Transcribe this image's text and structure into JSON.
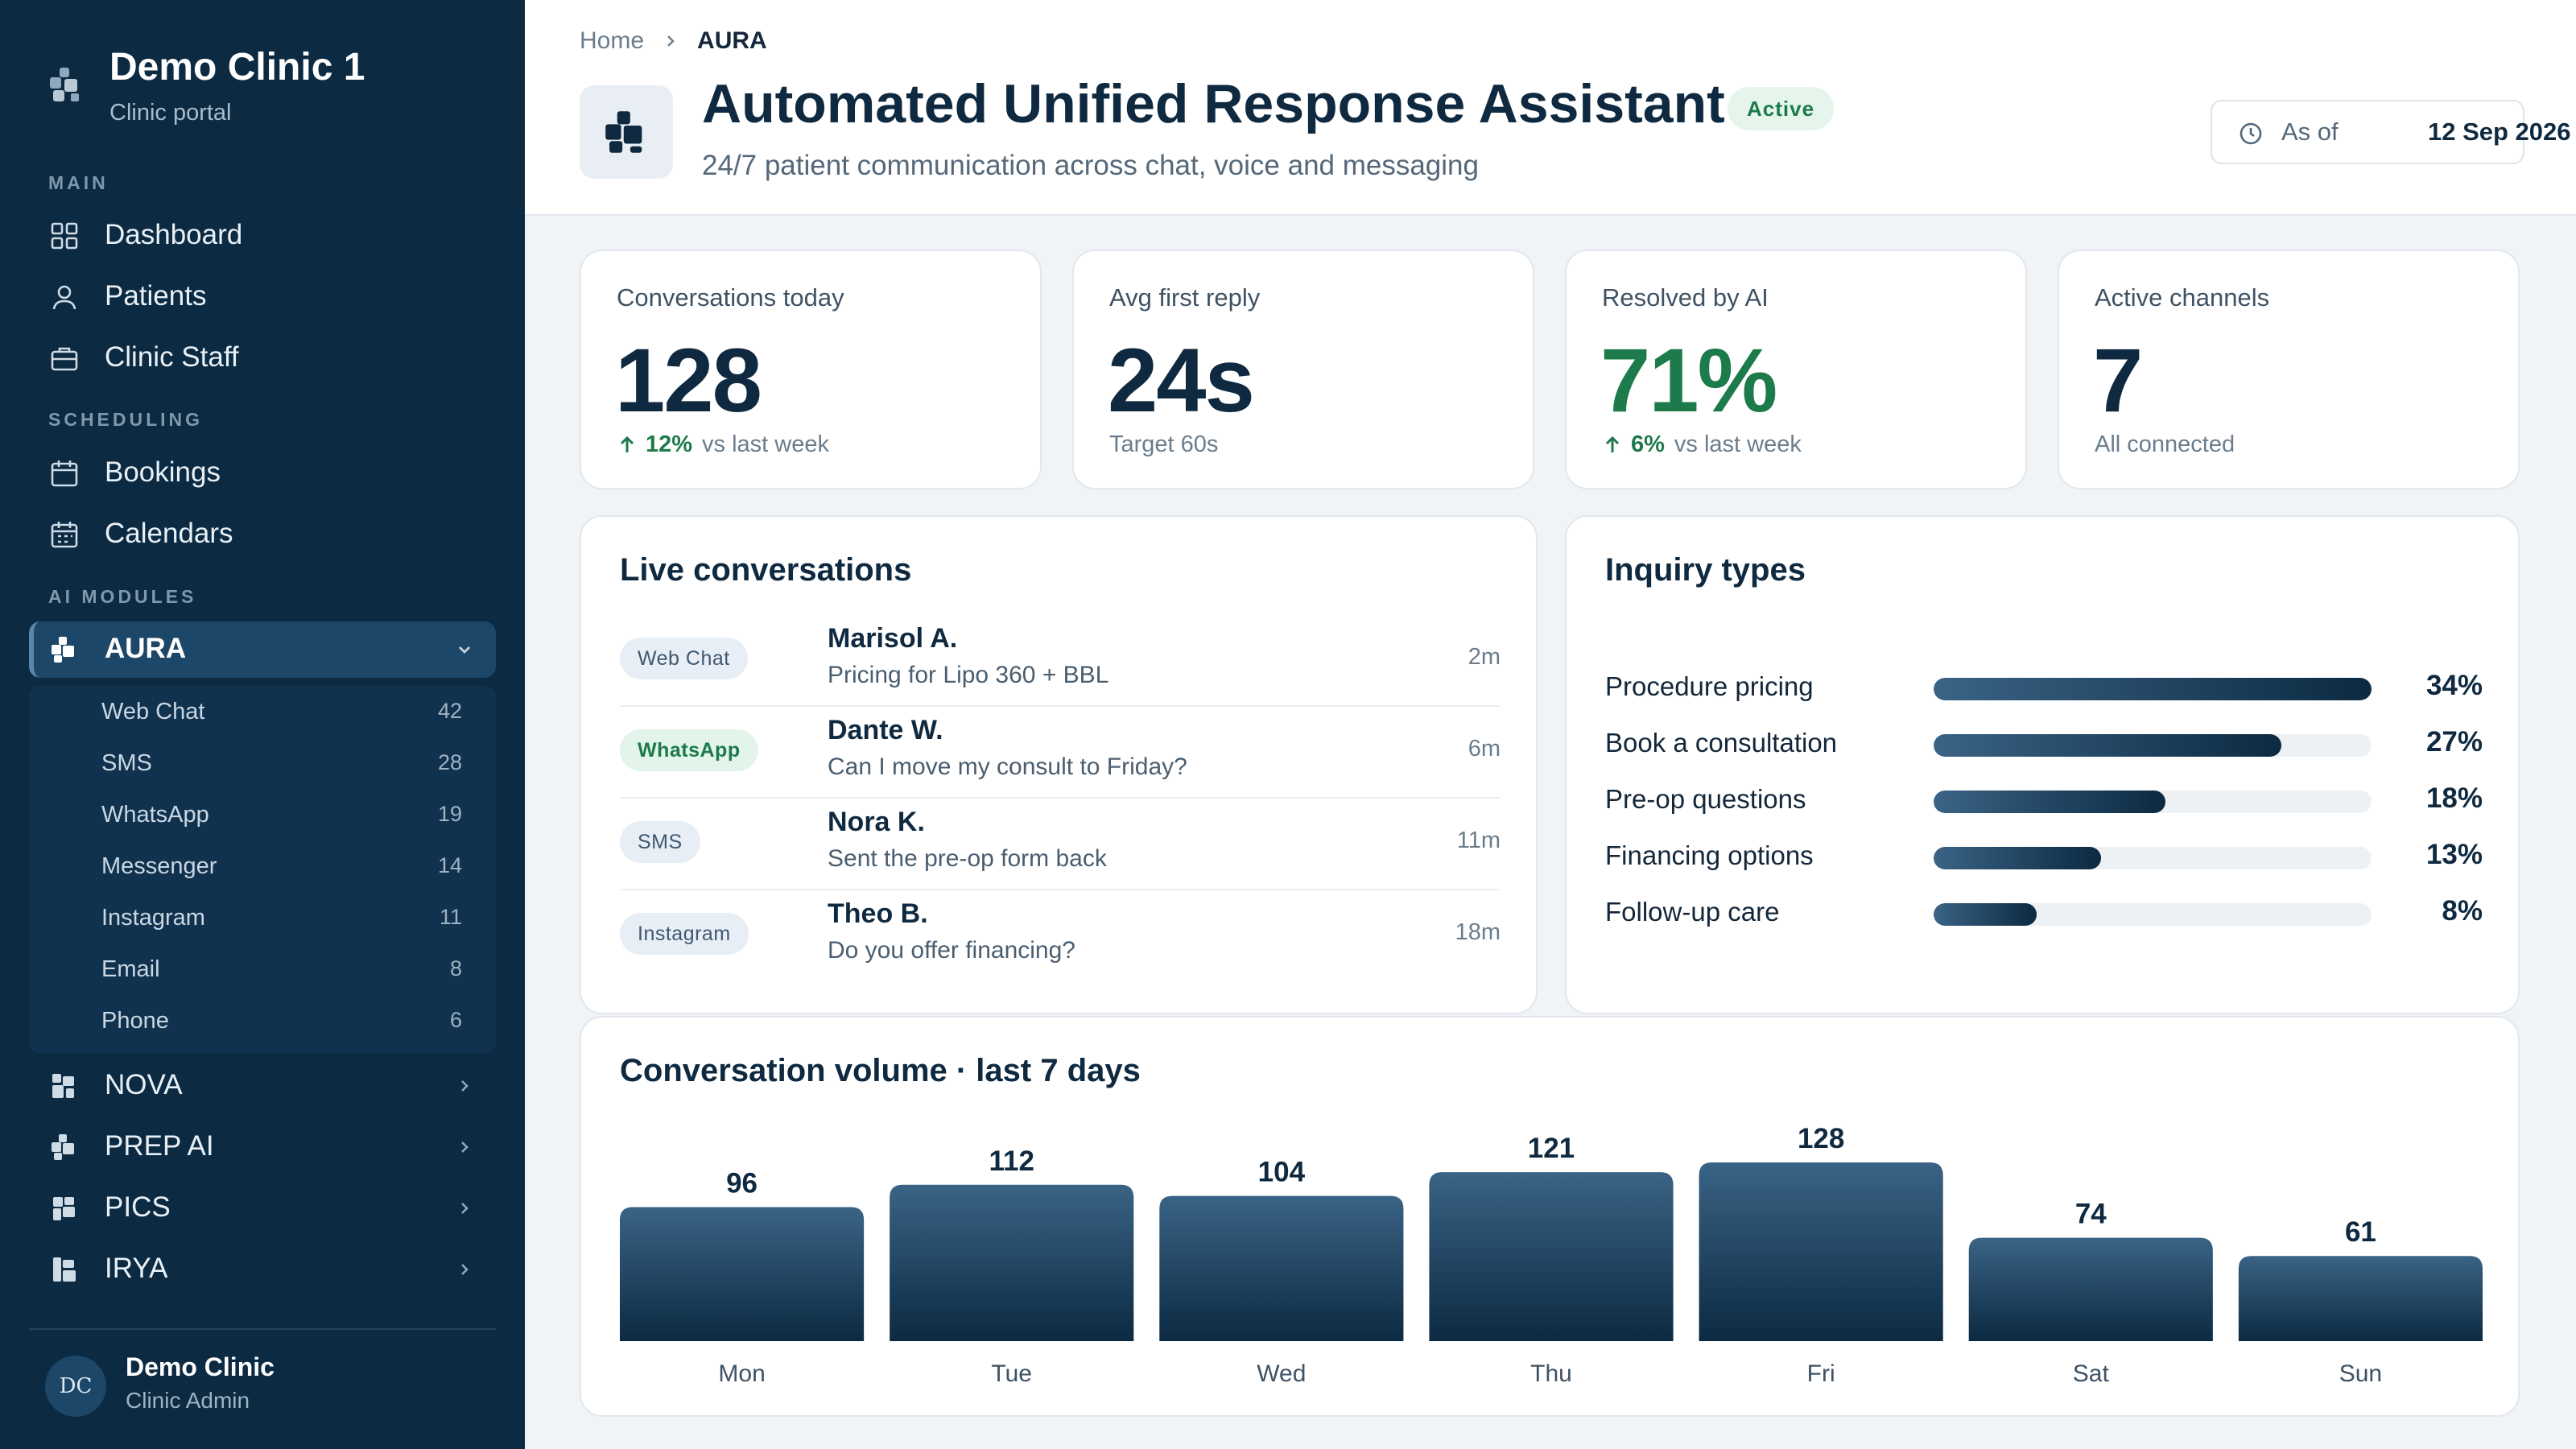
{
  "sidebar": {
    "brand": {
      "name": "Demo Clinic 1",
      "subtitle": "Clinic portal"
    },
    "sections": {
      "main": "MAIN",
      "scheduling": "SCHEDULING",
      "ai_modules": "AI MODULES"
    },
    "main_items": [
      {
        "label": "Dashboard",
        "icon": "grid-icon"
      },
      {
        "label": "Patients",
        "icon": "user-icon"
      },
      {
        "label": "Clinic Staff",
        "icon": "briefcase-icon"
      }
    ],
    "scheduling_items": [
      {
        "label": "Bookings",
        "icon": "calendar-icon"
      },
      {
        "label": "Calendars",
        "icon": "calendar-grid-icon"
      }
    ],
    "active_module": {
      "label": "AURA",
      "icon": "puzzle-icon"
    },
    "aura_channels": [
      {
        "label": "Web Chat",
        "count": "42"
      },
      {
        "label": "SMS",
        "count": "28"
      },
      {
        "label": "WhatsApp",
        "count": "19"
      },
      {
        "label": "Messenger",
        "count": "14"
      },
      {
        "label": "Instagram",
        "count": "11"
      },
      {
        "label": "Email",
        "count": "8"
      },
      {
        "label": "Phone",
        "count": "6"
      }
    ],
    "other_modules": [
      {
        "label": "NOVA"
      },
      {
        "label": "PREP AI"
      },
      {
        "label": "PICS"
      },
      {
        "label": "IRYA"
      }
    ],
    "user": {
      "initials": "DC",
      "name": "Demo Clinic",
      "role": "Clinic Admin"
    }
  },
  "header": {
    "breadcrumb": {
      "home": "Home",
      "current": "AURA"
    },
    "title": "Automated Unified Response Assistant",
    "status": "Active",
    "subtitle": "24/7 patient communication across chat, voice and messaging",
    "as_of_label": "As of",
    "as_of_date": "12 Sep 2026"
  },
  "kpis": [
    {
      "label": "Conversations today",
      "value": "128",
      "delta": "12%",
      "foot": "vs last week"
    },
    {
      "label": "Avg first reply",
      "value": "24s",
      "foot": "Target 60s"
    },
    {
      "label": "Resolved by AI",
      "value": "71%",
      "delta": "6%",
      "foot": "vs last week"
    },
    {
      "label": "Active channels",
      "value": "7",
      "foot": "All connected"
    }
  ],
  "live": {
    "title": "Live conversations",
    "rows": [
      {
        "channel": "Web Chat",
        "name": "Marisol A.",
        "message": "Pricing for Lipo 360 + BBL",
        "time": "2m"
      },
      {
        "channel": "WhatsApp",
        "name": "Dante W.",
        "message": "Can I move my consult to Friday?",
        "time": "6m"
      },
      {
        "channel": "SMS",
        "name": "Nora K.",
        "message": "Sent the pre-op form back",
        "time": "11m"
      },
      {
        "channel": "Instagram",
        "name": "Theo B.",
        "message": "Do you offer financing?",
        "time": "18m"
      }
    ]
  },
  "inquiry": {
    "title": "Inquiry types",
    "rows": [
      {
        "label": "Procedure pricing",
        "value": 34,
        "display": "34%"
      },
      {
        "label": "Book a consultation",
        "value": 27,
        "display": "27%"
      },
      {
        "label": "Pre-op questions",
        "value": 18,
        "display": "18%"
      },
      {
        "label": "Financing options",
        "value": 13,
        "display": "13%"
      },
      {
        "label": "Follow-up care",
        "value": 8,
        "display": "8%"
      }
    ],
    "max": 34
  },
  "chart_data": {
    "type": "bar",
    "title": "Conversation volume · last 7 days",
    "categories": [
      "Mon",
      "Tue",
      "Wed",
      "Thu",
      "Fri",
      "Sat",
      "Sun"
    ],
    "values": [
      96,
      112,
      104,
      121,
      128,
      74,
      61
    ],
    "ylim": [
      0,
      128
    ],
    "grid": false,
    "colors": {
      "bar_top": "#3a6385",
      "bar_bottom": "#0c2a42"
    }
  }
}
